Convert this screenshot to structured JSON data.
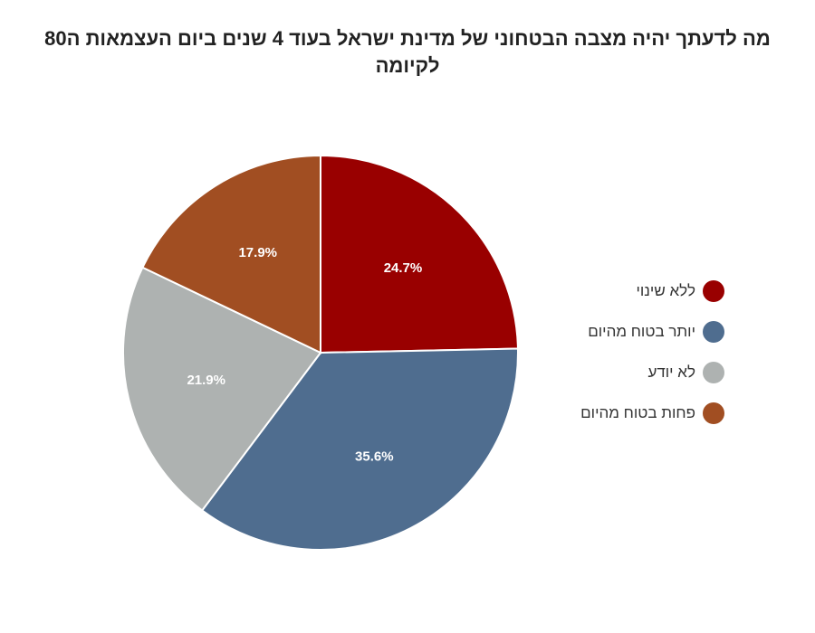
{
  "chart_data": {
    "type": "pie",
    "title": "מה לדעתך יהיה מצבה הבטחוני של מדינת ישראל בעוד 4 שנים ביום העצמאות ה80 לקיומה",
    "categories": [
      "ללא שינוי",
      "יותר בטוח מהיום",
      "לא יודע",
      "פחות בטוח מהיום"
    ],
    "values": [
      24.7,
      35.6,
      21.9,
      17.9
    ],
    "value_labels": [
      "24.7%",
      "35.6%",
      "21.9%",
      "17.9%"
    ],
    "colors": [
      "#990000",
      "#4f6d8f",
      "#aeb2b1",
      "#a14e22"
    ],
    "legend_position": "right",
    "start_angle": "12 o'clock, clockwise"
  }
}
